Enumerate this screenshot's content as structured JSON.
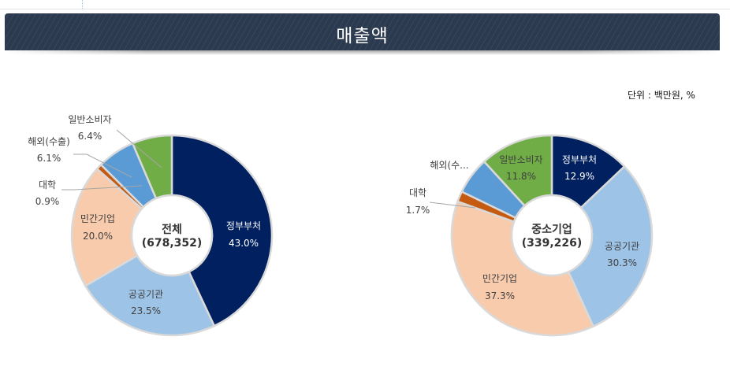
{
  "header": {
    "title": "매출액"
  },
  "unit_label": "단위 : 백만원, %",
  "chart_data": [
    {
      "type": "pie",
      "subtype": "donut",
      "title": "전체",
      "total_label": "(678,352)",
      "total": 678352,
      "categories": [
        "정부부처",
        "공공기관",
        "민간기업",
        "대학",
        "해외(수출)",
        "일반소비자"
      ],
      "values": [
        43.0,
        23.5,
        20.0,
        0.9,
        6.1,
        6.4
      ],
      "value_labels": [
        "43.0%",
        "23.5%",
        "20.0%",
        "0.9%",
        "6.1%",
        "6.4%"
      ],
      "colors": [
        "#002060",
        "#9dc3e6",
        "#f8cbad",
        "#c55a11",
        "#5b9bd5",
        "#70ad47"
      ]
    },
    {
      "type": "pie",
      "subtype": "donut",
      "title": "중소기업",
      "total_label": "(339,226)",
      "total": 339226,
      "categories": [
        "정부부처",
        "공공기관",
        "민간기업",
        "대학",
        "해외(수출)",
        "일반소비자"
      ],
      "display_names": [
        "정부부처",
        "공공기관",
        "민간기업",
        "대학",
        "해외(수...",
        "일반소비자"
      ],
      "values": [
        12.9,
        30.3,
        37.3,
        1.7,
        6.0,
        11.8
      ],
      "value_labels": [
        "12.9%",
        "30.3%",
        "37.3%",
        "1.7%",
        "",
        "11.8%"
      ],
      "colors": [
        "#002060",
        "#9dc3e6",
        "#f8cbad",
        "#c55a11",
        "#5b9bd5",
        "#70ad47"
      ]
    }
  ],
  "labels": {
    "c1": {
      "center_title": "전체",
      "center_total": "(678,352)",
      "gov_name": "정부부처",
      "gov_pct": "43.0%",
      "pub_name": "공공기관",
      "pub_pct": "23.5%",
      "pri_name": "민간기업",
      "pri_pct": "20.0%",
      "uni_name": "대학",
      "uni_pct": "0.9%",
      "exp_name": "해외(수출)",
      "exp_pct": "6.1%",
      "con_name": "일반소비자",
      "con_pct": "6.4%"
    },
    "c2": {
      "center_title": "중소기업",
      "center_total": "(339,226)",
      "gov_name": "정부부처",
      "gov_pct": "12.9%",
      "pub_name": "공공기관",
      "pub_pct": "30.3%",
      "pri_name": "민간기업",
      "pri_pct": "37.3%",
      "uni_name": "대학",
      "uni_pct": "1.7%",
      "exp_name": "해외(수...",
      "con_name": "일반소비자",
      "con_pct": "11.8%"
    }
  }
}
